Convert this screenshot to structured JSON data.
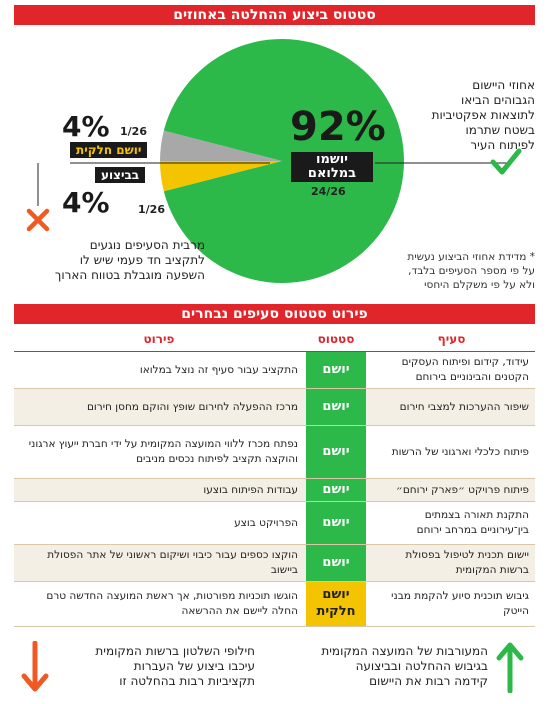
{
  "header": {
    "title": "סטטוס ביצוע ההחלטה באחוזים",
    "subtitle": "פירוט סטטוס סעיפים נבחרים"
  },
  "chart_data": {
    "type": "pie",
    "title": "סטטוס ביצוע ההחלטה באחוזים",
    "slices": [
      {
        "label": "יושמו במלואם",
        "percent": 92,
        "fraction": "24/26",
        "color": "#2db84a"
      },
      {
        "label": "יושם חלקית",
        "percent": 4,
        "fraction": "1/26",
        "color": "#f5c400"
      },
      {
        "label": "בביצוע",
        "percent": 4,
        "fraction": "1/26",
        "color": "#a8a8a8"
      }
    ]
  },
  "labels": {
    "full_pct": "92%",
    "full_label_1": "יושמו",
    "full_label_2": "במלואם",
    "full_frac": "24/26",
    "partial_pct": "4%",
    "partial_label": "יושם חלקית",
    "partial_frac": "1/26",
    "inprog_pct": "4%",
    "inprog_label": "בביצוע",
    "inprog_frac": "1/26"
  },
  "notes": {
    "right_text_1": "אחוזי היישום",
    "right_text_2": "הגבוהים הביאו",
    "right_text_3": "לתוצאות אפקטיביות",
    "right_text_4": "בשטח שתרמו",
    "right_text_5": "לפיתוח העיר",
    "left_text_1": "מרבית הסעיפים נוגעים",
    "left_text_2": "לתקציב חד פעמי שיש לו",
    "left_text_3": "השפעה מוגבלת בטווח הארוך",
    "footnote_1": "* מדידת אחוזי הביצוע נעשית",
    "footnote_2": "על פי מספר הסעיפים בלבד,",
    "footnote_3": "ולא על פי משקלם היחסי"
  },
  "table": {
    "headers": {
      "item": "סעיף",
      "status": "סטטוס",
      "detail": "פירוט"
    },
    "rows": [
      {
        "item": "עידוד, קידום ופיתוח העסקים הקטנים והבינוניים בירוחם",
        "status": "יושם",
        "detail": "התקציב עבור סעיף זה נוצל במלואו"
      },
      {
        "item": "שיפור ההערכות למצבי חירום",
        "status": "יושם",
        "detail": "מרכז ההפעלה לחירום שופץ והוקם מחסן חירום"
      },
      {
        "item": "פיתוח כלכלי וארגוני של הרשות",
        "status": "יושם",
        "detail": "נפתח מכרז ללווי המועצה המקומית על ידי חברת ייעוץ ארגוני והוקצה תקציב לפיתוח נכסים מניבים"
      },
      {
        "item": "פיתוח פרויקט ״פארק ירוחם״",
        "status": "יושם",
        "detail": "עבודות הפיתוח בוצעו"
      },
      {
        "item": "התקנת תאורה בצמתים בין־עירוניים במרחב ירוחם",
        "status": "יושם",
        "detail": "הפרויקט בוצע"
      },
      {
        "item": "יישום תכנית לטיפול בפסולת ברשות המקומית",
        "status": "יושם",
        "detail": "הוקצו כספים עבור כיבוי ושיקום ראשוני של אתר הפסולת ביישוב"
      },
      {
        "item": "גיבוש תוכנית סיוע להקמת מבני הייטק",
        "status": "יושם חלקית",
        "detail": "הוגשו תוכניות מפורטות, אך ראשת המועצה החדשה טרם החלה ליישם את ההרשאה"
      }
    ]
  },
  "footer": {
    "right_1": "המעורבות של המועצה המקומית",
    "right_2": "בגיבוש ההחלטה ובביצועה",
    "right_3": "קידמה רבות את היישום",
    "left_1": "חילופי השלטון ברשות המקומית",
    "left_2": "עיכבו ביצוע של העברות",
    "left_3": "תקציביות רבות בהחלטה זו"
  },
  "colors": {
    "accent": "#e0262b",
    "green": "#2db84a",
    "yellow": "#f5c400",
    "gray": "#a8a8a8",
    "orange": "#f05a22"
  },
  "icons": {
    "check": "check-icon",
    "cross": "x-icon",
    "up": "arrow-up-icon",
    "down": "arrow-down-icon"
  }
}
